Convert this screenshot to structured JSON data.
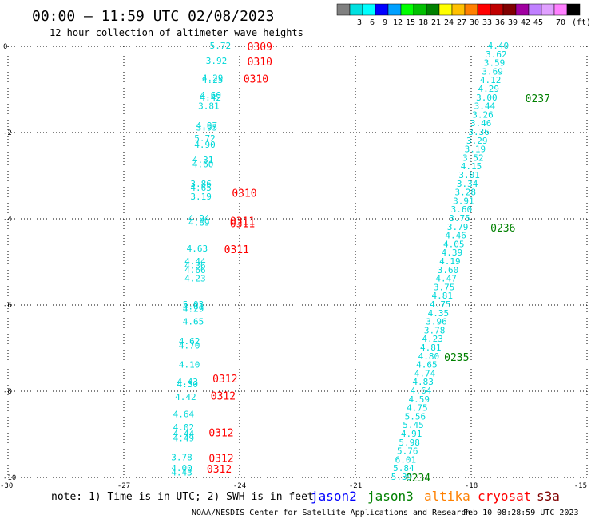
{
  "header": {
    "title": "00:00 – 11:59 UTC 02/08/2023",
    "subtitle": "12 hour collection of altimeter wave heights"
  },
  "legend": {
    "ticks": [
      "3",
      "6",
      "9",
      "12",
      "15",
      "18",
      "21",
      "24",
      "27",
      "30",
      "33",
      "36",
      "39",
      "42",
      "45",
      "70"
    ],
    "unit": "(ft)",
    "colors": [
      "#808080",
      "#00e0e0",
      "#00ffff",
      "#0000ff",
      "#00a0ff",
      "#00ff00",
      "#00c000",
      "#008000",
      "#ffff00",
      "#ffc000",
      "#ff8000",
      "#ff0000",
      "#c00000",
      "#800000",
      "#a000a0",
      "#c080ff",
      "#e0a0ff",
      "#ff80ff",
      "#000000"
    ]
  },
  "footer": {
    "note": "note: 1) Time is in UTC; 2) SWH is in feet",
    "satellites": [
      {
        "name": "jason2",
        "color": "#0000ff"
      },
      {
        "name": "jason3",
        "color": "#008000"
      },
      {
        "name": "altika",
        "color": "#ff8000"
      },
      {
        "name": "cryosat",
        "color": "#ff0000"
      },
      {
        "name": "s3a",
        "color": "#800000"
      }
    ],
    "credit": "NOAA/NESDIS Center for Satellite Applications and Research",
    "timestamp": "Feb 10 08:28:59 UTC 2023"
  },
  "chart_data": {
    "type": "scatter",
    "xlim": [
      -30,
      -15
    ],
    "ylim": [
      -10,
      0
    ],
    "xticks": [
      "-30",
      "-27",
      "-24",
      "-21",
      "-18",
      "-15"
    ],
    "yticks": [
      "0",
      "-2",
      "-4",
      "-6",
      "-8",
      "-10"
    ],
    "grid": true,
    "value_color": "#00d8d8",
    "series": [
      {
        "color": "#ff0000",
        "points": [
          {
            "x": -24.5,
            "y": -0.0,
            "v": "5.72"
          },
          {
            "x": -24.6,
            "y": -0.35,
            "v": "3.92"
          },
          {
            "x": -24.7,
            "y": -0.75,
            "v": "4.29"
          },
          {
            "x": -24.7,
            "y": -0.8,
            "v": "4.25"
          },
          {
            "x": -24.75,
            "y": -1.15,
            "v": "4.60"
          },
          {
            "x": -24.75,
            "y": -1.2,
            "v": "4.42"
          },
          {
            "x": -24.8,
            "y": -1.4,
            "v": "3.81"
          },
          {
            "x": -24.85,
            "y": -1.85,
            "v": "4.97"
          },
          {
            "x": -24.85,
            "y": -1.9,
            "v": "3.95"
          },
          {
            "x": -24.9,
            "y": -2.15,
            "v": "5.72"
          },
          {
            "x": -24.9,
            "y": -2.3,
            "v": "4.90"
          },
          {
            "x": -24.95,
            "y": -2.65,
            "v": "4.31"
          },
          {
            "x": -24.95,
            "y": -2.75,
            "v": "4.60"
          },
          {
            "x": -25.0,
            "y": -3.2,
            "v": "3.86"
          },
          {
            "x": -25.0,
            "y": -3.3,
            "v": "4.65"
          },
          {
            "x": -25.0,
            "y": -3.5,
            "v": "3.19"
          },
          {
            "x": -25.05,
            "y": -4.0,
            "v": "4.94"
          },
          {
            "x": -25.05,
            "y": -4.1,
            "v": "4.89"
          },
          {
            "x": -25.1,
            "y": -4.7,
            "v": "4.63"
          },
          {
            "x": -25.15,
            "y": -5.0,
            "v": "4.44"
          },
          {
            "x": -25.15,
            "y": -5.1,
            "v": "4.36"
          },
          {
            "x": -25.15,
            "y": -5.2,
            "v": "4.66"
          },
          {
            "x": -25.15,
            "y": -5.4,
            "v": "4.23"
          },
          {
            "x": -25.2,
            "y": -6.0,
            "v": "5.03"
          },
          {
            "x": -25.2,
            "y": -6.05,
            "v": "4.61"
          },
          {
            "x": -25.2,
            "y": -6.1,
            "v": "4.29"
          },
          {
            "x": -25.2,
            "y": -6.4,
            "v": "4.65"
          },
          {
            "x": -25.3,
            "y": -6.85,
            "v": "4.62"
          },
          {
            "x": -25.3,
            "y": -6.95,
            "v": "4.70"
          },
          {
            "x": -25.3,
            "y": -7.4,
            "v": "4.10"
          },
          {
            "x": -25.35,
            "y": -7.8,
            "v": "4.43"
          },
          {
            "x": -25.35,
            "y": -7.85,
            "v": "4.30"
          },
          {
            "x": -25.4,
            "y": -8.15,
            "v": "4.42"
          },
          {
            "x": -25.45,
            "y": -8.55,
            "v": "4.64"
          },
          {
            "x": -25.45,
            "y": -8.85,
            "v": "4.02"
          },
          {
            "x": -25.45,
            "y": -9.0,
            "v": "4.44"
          },
          {
            "x": -25.45,
            "y": -9.1,
            "v": "4.49"
          },
          {
            "x": -25.5,
            "y": -9.55,
            "v": "3.78"
          },
          {
            "x": -25.5,
            "y": -9.8,
            "v": "4.00"
          },
          {
            "x": -25.5,
            "y": -9.9,
            "v": "4.43"
          }
        ],
        "labels": [
          {
            "x": -23.8,
            "y": 0.0,
            "text": "0309"
          },
          {
            "x": -23.8,
            "y": -0.35,
            "text": "0310"
          },
          {
            "x": -23.9,
            "y": -0.75,
            "text": "0310"
          },
          {
            "x": -24.2,
            "y": -3.4,
            "text": "0310"
          },
          {
            "x": -24.25,
            "y": -4.05,
            "text": "0311"
          },
          {
            "x": -24.25,
            "y": -4.1,
            "text": "0311"
          },
          {
            "x": -24.4,
            "y": -4.7,
            "text": "0311"
          },
          {
            "x": -24.7,
            "y": -7.7,
            "text": "0312"
          },
          {
            "x": -24.75,
            "y": -8.1,
            "text": "0312"
          },
          {
            "x": -24.8,
            "y": -8.95,
            "text": "0312"
          },
          {
            "x": -24.8,
            "y": -9.55,
            "text": "0312"
          },
          {
            "x": -24.85,
            "y": -9.8,
            "text": "0312"
          }
        ]
      },
      {
        "color": "#008000",
        "points": [
          {
            "x": -17.3,
            "y": 0.0,
            "v": "4.40"
          },
          {
            "x": -17.35,
            "y": -0.2,
            "v": "3.62"
          },
          {
            "x": -17.4,
            "y": -0.4,
            "v": "3.59"
          },
          {
            "x": -17.45,
            "y": -0.6,
            "v": "3.69"
          },
          {
            "x": -17.5,
            "y": -0.8,
            "v": "4.12"
          },
          {
            "x": -17.55,
            "y": -1.0,
            "v": "4.29"
          },
          {
            "x": -17.6,
            "y": -1.2,
            "v": "3.00"
          },
          {
            "x": -17.65,
            "y": -1.4,
            "v": "3.44"
          },
          {
            "x": -17.7,
            "y": -1.6,
            "v": "3.26"
          },
          {
            "x": -17.75,
            "y": -1.8,
            "v": "3.46"
          },
          {
            "x": -17.8,
            "y": -2.0,
            "v": "3.36"
          },
          {
            "x": -17.85,
            "y": -2.2,
            "v": "3.29"
          },
          {
            "x": -17.9,
            "y": -2.4,
            "v": "3.19"
          },
          {
            "x": -17.95,
            "y": -2.6,
            "v": "3.52"
          },
          {
            "x": -18.0,
            "y": -2.8,
            "v": "4.15"
          },
          {
            "x": -18.05,
            "y": -3.0,
            "v": "3.01"
          },
          {
            "x": -18.1,
            "y": -3.2,
            "v": "3.34"
          },
          {
            "x": -18.15,
            "y": -3.4,
            "v": "3.28"
          },
          {
            "x": -18.2,
            "y": -3.6,
            "v": "3.91"
          },
          {
            "x": -18.25,
            "y": -3.8,
            "v": "3.60"
          },
          {
            "x": -18.3,
            "y": -4.0,
            "v": "3.75"
          },
          {
            "x": -18.35,
            "y": -4.2,
            "v": "3.79"
          },
          {
            "x": -18.4,
            "y": -4.4,
            "v": "4.46"
          },
          {
            "x": -18.45,
            "y": -4.6,
            "v": "4.05"
          },
          {
            "x": -18.5,
            "y": -4.8,
            "v": "4.39"
          },
          {
            "x": -18.55,
            "y": -5.0,
            "v": "4.19"
          },
          {
            "x": -18.6,
            "y": -5.2,
            "v": "3.60"
          },
          {
            "x": -18.65,
            "y": -5.4,
            "v": "4.47"
          },
          {
            "x": -18.7,
            "y": -5.6,
            "v": "3.75"
          },
          {
            "x": -18.75,
            "y": -5.8,
            "v": "4.81"
          },
          {
            "x": -18.8,
            "y": -6.0,
            "v": "4.75"
          },
          {
            "x": -18.85,
            "y": -6.2,
            "v": "4.35"
          },
          {
            "x": -18.9,
            "y": -6.4,
            "v": "3.96"
          },
          {
            "x": -18.95,
            "y": -6.6,
            "v": "3.78"
          },
          {
            "x": -19.0,
            "y": -6.8,
            "v": "4.23"
          },
          {
            "x": -19.05,
            "y": -7.0,
            "v": "4.81"
          },
          {
            "x": -19.1,
            "y": -7.2,
            "v": "4.80"
          },
          {
            "x": -19.15,
            "y": -7.4,
            "v": "4.65"
          },
          {
            "x": -19.2,
            "y": -7.6,
            "v": "4.74"
          },
          {
            "x": -19.25,
            "y": -7.8,
            "v": "4.83"
          },
          {
            "x": -19.3,
            "y": -8.0,
            "v": "4.64"
          },
          {
            "x": -19.35,
            "y": -8.2,
            "v": "4.59"
          },
          {
            "x": -19.4,
            "y": -8.4,
            "v": "4.75"
          },
          {
            "x": -19.45,
            "y": -8.6,
            "v": "5.56"
          },
          {
            "x": -19.5,
            "y": -8.8,
            "v": "5.45"
          },
          {
            "x": -19.55,
            "y": -9.0,
            "v": "4.91"
          },
          {
            "x": -19.6,
            "y": -9.2,
            "v": "5.98"
          },
          {
            "x": -19.65,
            "y": -9.4,
            "v": "5.76"
          },
          {
            "x": -19.7,
            "y": -9.6,
            "v": "6.01"
          },
          {
            "x": -19.75,
            "y": -9.8,
            "v": "5.84"
          },
          {
            "x": -19.8,
            "y": -10.0,
            "v": "5.39"
          }
        ],
        "labels": [
          {
            "x": -16.6,
            "y": -1.2,
            "text": "0237"
          },
          {
            "x": -17.5,
            "y": -4.2,
            "text": "0236"
          },
          {
            "x": -18.7,
            "y": -7.2,
            "text": "0235"
          },
          {
            "x": -19.7,
            "y": -10.0,
            "text": "0234"
          }
        ]
      }
    ]
  }
}
